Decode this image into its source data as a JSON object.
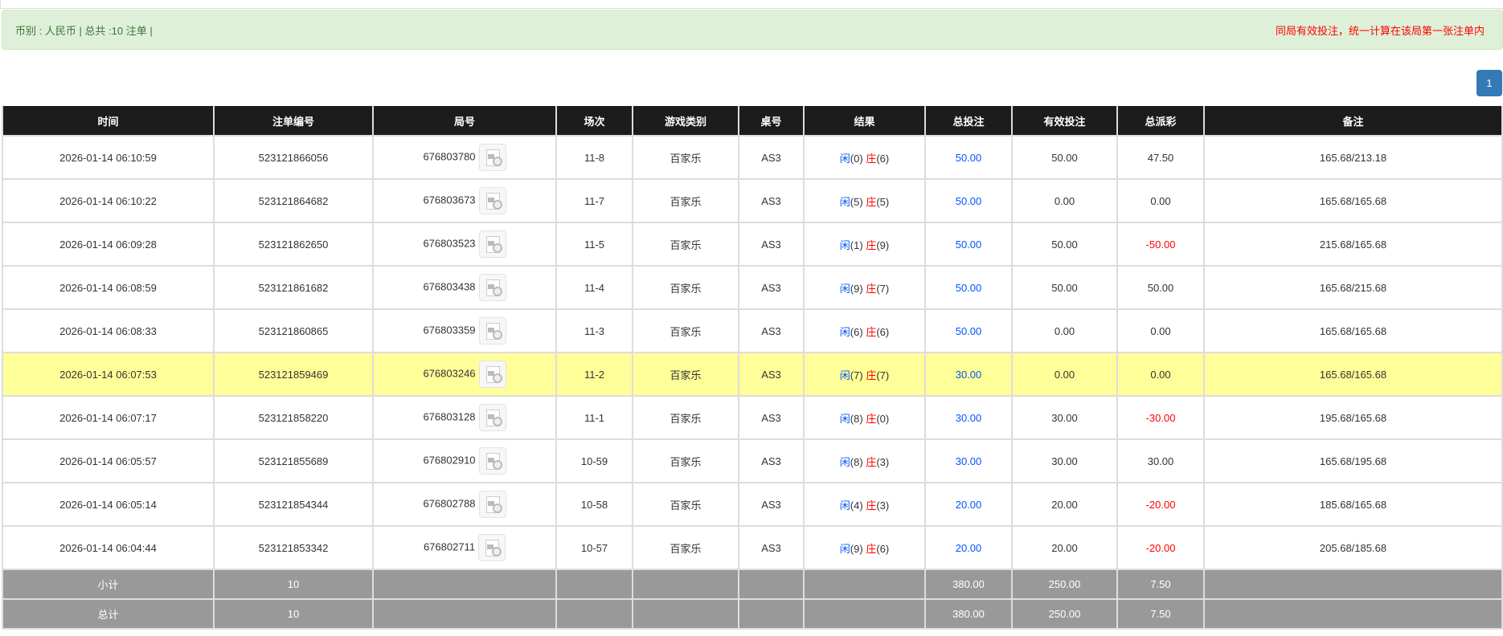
{
  "summary": {
    "left": "币别 : 人民币 | 总共 :10 注单 |",
    "right": "同局有效投注，统一计算在该局第一张注单内"
  },
  "pagination": {
    "current": "1"
  },
  "columns": [
    "时间",
    "注单编号",
    "局号",
    "场次",
    "游戏类别",
    "桌号",
    "结果",
    "总投注",
    "有效投注",
    "总派彩",
    "备注"
  ],
  "colors": {
    "player": "#0055ff",
    "banker": "#ff0000",
    "negative": "#ff0000",
    "total_bet": "#0055ff",
    "highlight": "#ffff99",
    "header": "#1c1c1c",
    "summary_row": "#999999"
  },
  "rows": [
    {
      "time": "2026-01-14 06:10:59",
      "bet_no": "523121866056",
      "round": "676803780",
      "icon": "video-replay-icon",
      "game_no": "11-8",
      "game": "百家乐",
      "table": "AS3",
      "player": "闲",
      "player_val": "(0)",
      "banker": "庄",
      "banker_val": "(6)",
      "total": "50.00",
      "valid": "50.00",
      "payout": "47.50",
      "payout_negative": false,
      "note": "165.68/213.18"
    },
    {
      "time": "2026-01-14 06:10:22",
      "bet_no": "523121864682",
      "round": "676803673",
      "icon": "video-replay-icon",
      "game_no": "11-7",
      "game": "百家乐",
      "table": "AS3",
      "player": "闲",
      "player_val": "(5)",
      "banker": "庄",
      "banker_val": "(5)",
      "total": "50.00",
      "valid": "0.00",
      "payout": "0.00",
      "payout_negative": false,
      "note": "165.68/165.68"
    },
    {
      "time": "2026-01-14 06:09:28",
      "bet_no": "523121862650",
      "round": "676803523",
      "icon": "video-replay-icon",
      "game_no": "11-5",
      "game": "百家乐",
      "table": "AS3",
      "player": "闲",
      "player_val": "(1)",
      "banker": "庄",
      "banker_val": "(9)",
      "total": "50.00",
      "valid": "50.00",
      "payout": "-50.00",
      "payout_negative": true,
      "note": "215.68/165.68"
    },
    {
      "time": "2026-01-14 06:08:59",
      "bet_no": "523121861682",
      "round": "676803438",
      "icon": "video-replay-icon",
      "game_no": "11-4",
      "game": "百家乐",
      "table": "AS3",
      "player": "闲",
      "player_val": "(9)",
      "banker": "庄",
      "banker_val": "(7)",
      "total": "50.00",
      "valid": "50.00",
      "payout": "50.00",
      "payout_negative": false,
      "note": "165.68/215.68"
    },
    {
      "time": "2026-01-14 06:08:33",
      "bet_no": "523121860865",
      "round": "676803359",
      "icon": "video-replay-icon",
      "game_no": "11-3",
      "game": "百家乐",
      "table": "AS3",
      "player": "闲",
      "player_val": "(6)",
      "banker": "庄",
      "banker_val": "(6)",
      "total": "50.00",
      "valid": "0.00",
      "payout": "0.00",
      "payout_negative": false,
      "note": "165.68/165.68"
    },
    {
      "time": "2026-01-14 06:07:53",
      "bet_no": "523121859469",
      "round": "676803246",
      "icon": "video-replay-icon",
      "game_no": "11-2",
      "game": "百家乐",
      "table": "AS3",
      "player": "闲",
      "player_val": "(7)",
      "banker": "庄",
      "banker_val": "(7)",
      "total": "30.00",
      "valid": "0.00",
      "payout": "0.00",
      "payout_negative": false,
      "note": "165.68/165.68",
      "highlighted": true
    },
    {
      "time": "2026-01-14 06:07:17",
      "bet_no": "523121858220",
      "round": "676803128",
      "icon": "video-replay-icon",
      "game_no": "11-1",
      "game": "百家乐",
      "table": "AS3",
      "player": "闲",
      "player_val": "(8)",
      "banker": "庄",
      "banker_val": "(0)",
      "total": "30.00",
      "valid": "30.00",
      "payout": "-30.00",
      "payout_negative": true,
      "note": "195.68/165.68"
    },
    {
      "time": "2026-01-14 06:05:57",
      "bet_no": "523121855689",
      "round": "676802910",
      "icon": "video-replay-icon",
      "game_no": "10-59",
      "game": "百家乐",
      "table": "AS3",
      "player": "闲",
      "player_val": "(8)",
      "banker": "庄",
      "banker_val": "(3)",
      "total": "30.00",
      "valid": "30.00",
      "payout": "30.00",
      "payout_negative": false,
      "note": "165.68/195.68"
    },
    {
      "time": "2026-01-14 06:05:14",
      "bet_no": "523121854344",
      "round": "676802788",
      "icon": "video-replay-icon",
      "game_no": "10-58",
      "game": "百家乐",
      "table": "AS3",
      "player": "闲",
      "player_val": "(4)",
      "banker": "庄",
      "banker_val": "(3)",
      "total": "20.00",
      "valid": "20.00",
      "payout": "-20.00",
      "payout_negative": true,
      "note": "185.68/165.68"
    },
    {
      "time": "2026-01-14 06:04:44",
      "bet_no": "523121853342",
      "round": "676802711",
      "icon": "video-replay-icon",
      "game_no": "10-57",
      "game": "百家乐",
      "table": "AS3",
      "player": "闲",
      "player_val": "(9)",
      "banker": "庄",
      "banker_val": "(6)",
      "total": "20.00",
      "valid": "20.00",
      "payout": "-20.00",
      "payout_negative": true,
      "note": "205.68/185.68"
    }
  ],
  "subtotal": {
    "label": "小计",
    "count": "10",
    "total": "380.00",
    "valid": "250.00",
    "payout": "7.50"
  },
  "grandtotal": {
    "label": "总计",
    "count": "10",
    "total": "380.00",
    "valid": "250.00",
    "payout": "7.50"
  }
}
